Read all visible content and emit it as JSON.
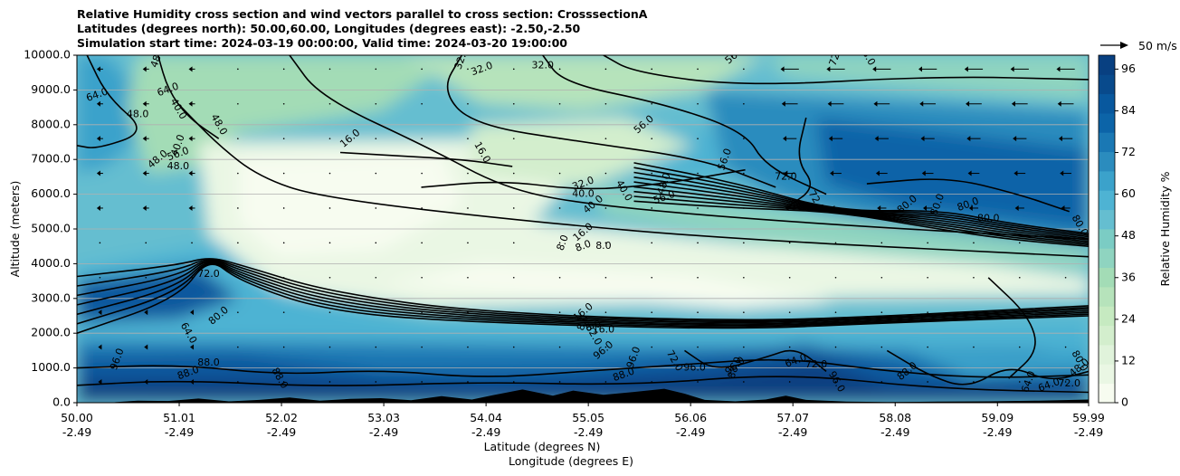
{
  "chart_data": {
    "type": "heatmap",
    "title_lines": [
      "Relative Humidity cross section and wind vectors parallel to cross section: CrosssectionA",
      "Latitudes (degrees north): 50.00,60.00, Longitudes (degrees east): -2.50,-2.50",
      "Simulation start time: 2024-03-19 00:00:00, Valid time: 2024-03-20 19:00:00"
    ],
    "ylabel": "Altitude (meters)",
    "xlabel_lines": [
      "Latitude (degrees N)",
      "Longitude (degrees E)"
    ],
    "ylim": [
      0,
      10000
    ],
    "xlim": [
      50.0,
      59.99
    ],
    "y_ticks": [
      0,
      1000,
      2000,
      3000,
      4000,
      5000,
      6000,
      7000,
      8000,
      9000,
      10000
    ],
    "y_tick_labels": [
      "0.0",
      "1000.0",
      "2000.0",
      "3000.0",
      "4000.0",
      "5000.0",
      "6000.0",
      "7000.0",
      "8000.0",
      "9000.0",
      "10000.0"
    ],
    "x_ticks": [
      50.0,
      51.01,
      52.02,
      53.03,
      54.04,
      55.05,
      56.06,
      57.07,
      58.08,
      59.09,
      59.99
    ],
    "x_tick_lat_labels": [
      "50.00",
      "51.01",
      "52.02",
      "53.03",
      "54.04",
      "55.05",
      "56.06",
      "57.07",
      "58.08",
      "59.09",
      "59.99"
    ],
    "x_tick_lon_labels": [
      "-2.49",
      "-2.49",
      "-2.49",
      "-2.49",
      "-2.49",
      "-2.49",
      "-2.49",
      "-2.49",
      "-2.49",
      "-2.49",
      "-2.49"
    ],
    "grid": "horizontal",
    "colorbar": {
      "label": "Relative Humidity %",
      "range": [
        0,
        100
      ],
      "ticks": [
        0,
        12,
        24,
        36,
        48,
        60,
        72,
        84,
        96
      ],
      "tick_labels": [
        "0",
        "12",
        "24",
        "36",
        "48",
        "60",
        "72",
        "84",
        "96"
      ],
      "colors": [
        "#f7fcf0",
        "#eaf7e4",
        "#e0f3db",
        "#d3eecd",
        "#c6eac1",
        "#b6e3bb",
        "#a3dcb6",
        "#8fd4c0",
        "#7bccc4",
        "#65bed0",
        "#4eb3d3",
        "#3ba2cb",
        "#2b8cbe",
        "#1a78b4",
        "#0c64a8",
        "#08589e",
        "#084a8c",
        "#084081"
      ],
      "position": "right"
    },
    "quiver_key": {
      "label": "50 m/s"
    },
    "contour_labels": [
      "48.0",
      "64.0",
      "48.0",
      "40.0",
      "48.0",
      "40.0",
      "56.0",
      "48.0",
      "48.0",
      "16.0",
      "32.0",
      "32.0",
      "32.0",
      "16.0",
      "56.0",
      "56.0",
      "32.0",
      "40.0",
      "40.0",
      "40.0",
      "48.0",
      "56.0",
      "72.0",
      "72.0",
      "80.0",
      "80.0",
      "80.0",
      "80.0",
      "80.0",
      "16.0",
      "8.0",
      "8.0",
      "8.0",
      "48.0",
      "56.0",
      "72.0",
      "64.0",
      "72.0",
      "64.0",
      "80.0",
      "96.0",
      "88.0",
      "88.0",
      "88.0",
      "96.0",
      "96.0",
      "88.0",
      "96.0",
      "72.0",
      "96.0",
      "88.0",
      "64.0",
      "72.0",
      "96.0",
      "88.0",
      "64.0",
      "64.0",
      "72.0",
      "80.0",
      "16.0",
      "8.0",
      "8.0",
      "16.0",
      "32.0",
      "48.0"
    ],
    "ground_profile": [
      [
        50.0,
        0
      ],
      [
        50.3,
        0
      ],
      [
        50.6,
        60
      ],
      [
        50.9,
        50
      ],
      [
        51.2,
        120
      ],
      [
        51.5,
        40
      ],
      [
        51.8,
        80
      ],
      [
        52.1,
        150
      ],
      [
        52.4,
        60
      ],
      [
        52.7,
        110
      ],
      [
        53.0,
        130
      ],
      [
        53.3,
        70
      ],
      [
        53.6,
        190
      ],
      [
        53.9,
        90
      ],
      [
        54.1,
        210
      ],
      [
        54.4,
        380
      ],
      [
        54.7,
        200
      ],
      [
        54.9,
        350
      ],
      [
        55.2,
        230
      ],
      [
        55.5,
        310
      ],
      [
        55.8,
        400
      ],
      [
        56.0,
        260
      ],
      [
        56.2,
        80
      ],
      [
        56.5,
        40
      ],
      [
        56.8,
        90
      ],
      [
        57.0,
        200
      ],
      [
        57.2,
        80
      ],
      [
        57.6,
        30
      ],
      [
        58.0,
        20
      ],
      [
        58.5,
        30
      ],
      [
        59.0,
        40
      ],
      [
        59.5,
        60
      ],
      [
        59.99,
        90
      ]
    ]
  }
}
